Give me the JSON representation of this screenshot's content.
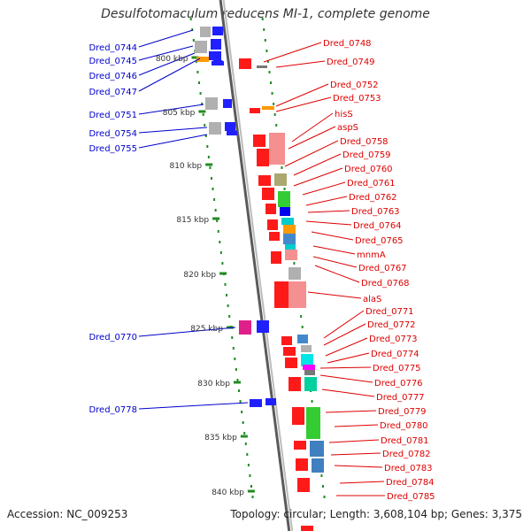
{
  "title": "Desulfotomaculum reducens MI-1, complete genome",
  "footer": {
    "accession": "Accession: NC_009253",
    "topology": "Topology: circular; Length: 3,608,104 bp; Genes: 3,375"
  },
  "colors": {
    "left_label": "#0000cc",
    "right_label": "#dd0000",
    "backbone": "#808080",
    "tick": "#228b22"
  },
  "kbp_ticks": [
    "800 kbp",
    "805 kbp",
    "810 kbp",
    "815 kbp",
    "820 kbp",
    "825 kbp",
    "830 kbp",
    "835 kbp",
    "840 kbp"
  ],
  "left_genes": [
    "Dred_0744",
    "Dred_0745",
    "Dred_0746",
    "Dred_0747",
    "Dred_0751",
    "Dred_0754",
    "Dred_0755",
    "Dred_0770",
    "Dred_0778"
  ],
  "right_genes": [
    "Dred_0748",
    "Dred_0749",
    "Dred_0752",
    "Dred_0753",
    "hisS",
    "aspS",
    "Dred_0758",
    "Dred_0759",
    "Dred_0760",
    "Dred_0761",
    "Dred_0762",
    "Dred_0763",
    "Dred_0764",
    "Dred_0765",
    "mnmA",
    "Dred_0767",
    "Dred_0768",
    "alaS",
    "Dred_0771",
    "Dred_0772",
    "Dred_0773",
    "Dred_0774",
    "Dred_0775",
    "Dred_0776",
    "Dred_0777",
    "Dred_0779",
    "Dred_0780",
    "Dred_0781",
    "Dred_0782",
    "Dred_0783",
    "Dred_0784",
    "Dred_0785"
  ]
}
